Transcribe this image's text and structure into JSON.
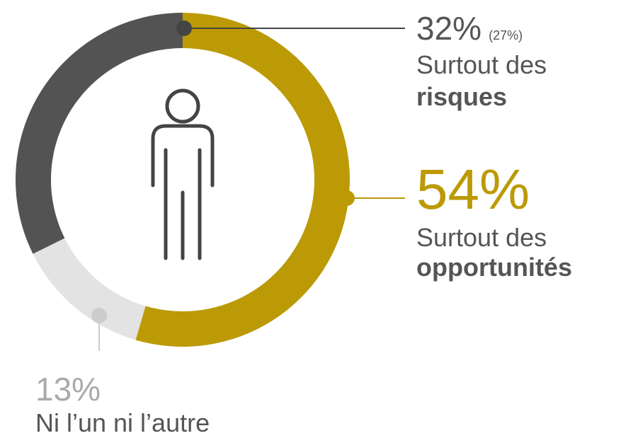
{
  "chart_data": {
    "type": "donut",
    "labels": [
      {
        "line1": "Surtout des",
        "line2": "opportunités"
      },
      {
        "line1": "Ni l’un ni l’autre"
      },
      {
        "line1": "Surtout des",
        "line2": "risques"
      }
    ],
    "values": [
      54,
      13,
      32
    ],
    "value_labels": [
      "54%",
      "13%",
      "32%"
    ],
    "annotation": "(27%)",
    "colors": [
      "#bb9a06",
      "#e3e3e3",
      "#535353"
    ]
  }
}
